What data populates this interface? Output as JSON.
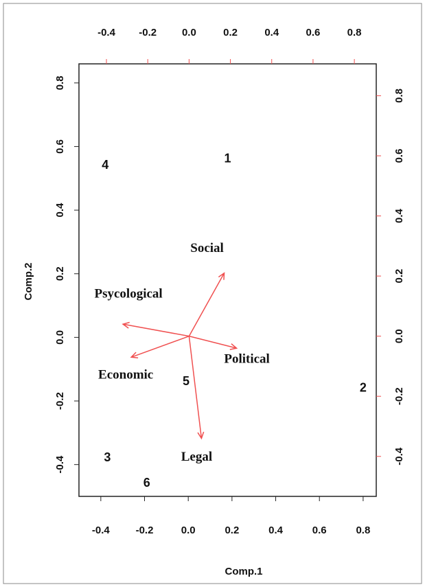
{
  "chart_data": {
    "type": "biplot",
    "xlabel": "Comp.1",
    "ylabel": "Comp.2",
    "xlim": [
      -0.5,
      0.86
    ],
    "ylim": [
      -0.5,
      0.86
    ],
    "xticks": [
      -0.4,
      -0.2,
      {
        "value": 0,
        "label": "0.0"
      },
      0.2,
      0.4,
      0.6,
      0.8
    ],
    "yticks": [
      -0.4,
      -0.2,
      {
        "value": 0,
        "label": "0.0"
      },
      0.2,
      0.4,
      0.6,
      0.8
    ],
    "x2lim": [
      -0.533,
      0.906
    ],
    "y2lim": [
      -0.533,
      0.906
    ],
    "x2ticks": [
      -0.4,
      -0.2,
      {
        "value": 0,
        "label": "0.0"
      },
      0.2,
      0.4,
      0.6,
      0.8
    ],
    "y2ticks": [
      -0.4,
      -0.2,
      {
        "value": 0,
        "label": "0.0"
      },
      0.2,
      0.4,
      0.6,
      0.8
    ],
    "scores": {
      "labels": [
        "1",
        "2",
        "3",
        "4",
        "5",
        "6"
      ],
      "x": [
        0.18,
        0.8,
        -0.37,
        -0.38,
        -0.01,
        -0.19
      ],
      "y": [
        0.56,
        -0.16,
        -0.38,
        0.54,
        -0.14,
        -0.46
      ],
      "color": "#111111"
    },
    "loadings": {
      "labels": [
        "Social",
        "Psycological",
        "Political",
        "Economic",
        "Legal"
      ],
      "x": [
        0.17,
        -0.32,
        0.23,
        -0.28,
        0.06
      ],
      "y": [
        0.21,
        0.04,
        -0.04,
        -0.07,
        -0.34
      ],
      "color": "#f05050",
      "label_color": "#a3262a"
    }
  }
}
